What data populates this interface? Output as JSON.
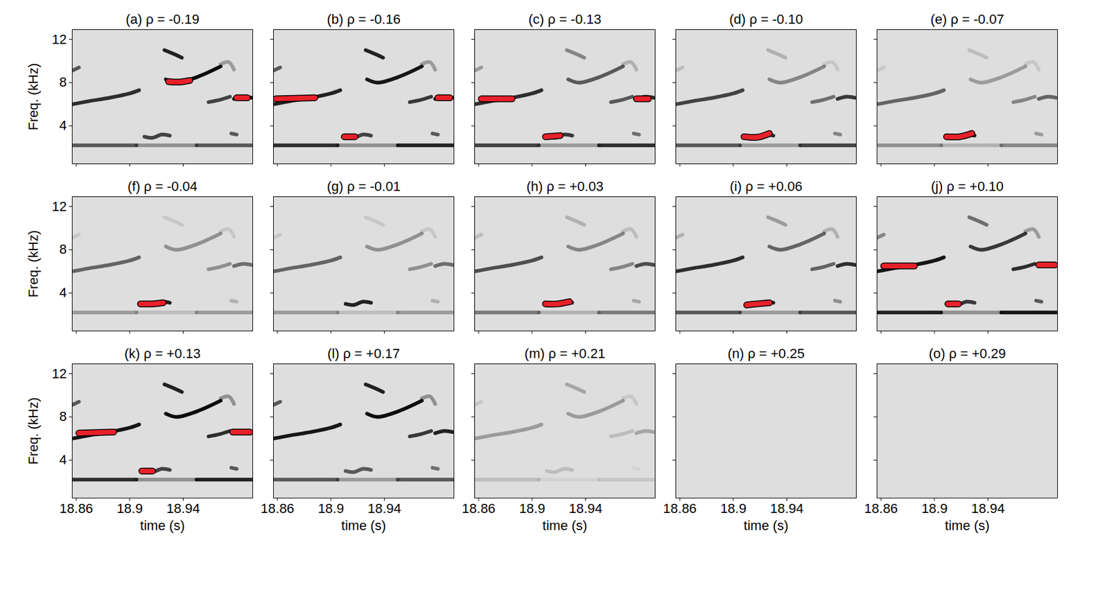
{
  "chart_data": {
    "type": "spectrogram",
    "x_label": "time (s)",
    "y_label": "Freq. (kHz)",
    "xlim": [
      18.857,
      18.992
    ],
    "ylim": [
      0.5,
      12.9
    ],
    "xticks": [
      18.86,
      18.9,
      18.94
    ],
    "yticks": [
      4,
      8,
      12
    ],
    "color": "#e8202a",
    "features": [
      {
        "time": [
          18.857,
          18.87,
          18.885,
          18.9,
          18.907
        ],
        "freq": [
          6.0,
          6.3,
          6.6,
          7.0,
          7.3
        ]
      },
      {
        "time": [
          18.857,
          18.862
        ],
        "freq": [
          9.1,
          9.4
        ]
      },
      {
        "time": [
          18.926,
          18.932,
          18.939
        ],
        "freq": [
          11.0,
          10.7,
          10.3
        ]
      },
      {
        "time": [
          18.927,
          18.935,
          18.95,
          18.968
        ],
        "freq": [
          8.3,
          8.0,
          8.5,
          9.5
        ]
      },
      {
        "time": [
          18.968,
          18.974,
          18.978
        ],
        "freq": [
          9.7,
          9.9,
          9.2
        ]
      },
      {
        "time": [
          18.959,
          18.967,
          18.975
        ],
        "freq": [
          6.2,
          6.4,
          6.7
        ]
      },
      {
        "time": [
          18.978,
          18.985,
          18.991
        ],
        "freq": [
          6.5,
          6.7,
          6.6
        ]
      },
      {
        "time": [
          18.911,
          18.917,
          18.924,
          18.93
        ],
        "freq": [
          3.0,
          2.9,
          3.2,
          3.1
        ]
      },
      {
        "time": [
          18.857,
          18.905
        ],
        "freq": [
          2.2,
          2.2
        ]
      },
      {
        "time": [
          18.905,
          18.95
        ],
        "freq": [
          2.2,
          2.2
        ]
      },
      {
        "time": [
          18.95,
          18.992
        ],
        "freq": [
          2.2,
          2.2
        ]
      },
      {
        "time": [
          18.976,
          18.98
        ],
        "freq": [
          3.3,
          3.2
        ]
      }
    ],
    "panels": [
      {
        "title": "(a) ρ = -0.19",
        "intensity": [
          0.8,
          0.6,
          0.85,
          0.95,
          0.3,
          0.7,
          0.9,
          0.7,
          0.6,
          0.35,
          0.6,
          0.6
        ],
        "highlights": [
          {
            "time": [
              18.929,
              18.937,
              18.945
            ],
            "freq": [
              8.1,
              8.05,
              8.2
            ]
          },
          {
            "time": [
              18.98,
              18.988
            ],
            "freq": [
              6.6,
              6.6
            ]
          }
        ]
      },
      {
        "title": "(b) ρ = -0.16",
        "intensity": [
          0.85,
          0.6,
          0.85,
          0.9,
          0.3,
          0.75,
          0.9,
          0.7,
          0.8,
          0.35,
          0.85,
          0.6
        ],
        "highlights": [
          {
            "time": [
              18.859,
              18.888
            ],
            "freq": [
              6.5,
              6.6
            ]
          },
          {
            "time": [
              18.91,
              18.918
            ],
            "freq": [
              3.0,
              3.0
            ]
          },
          {
            "time": [
              18.98,
              18.989
            ],
            "freq": [
              6.6,
              6.6
            ]
          }
        ]
      },
      {
        "title": "(c) ρ = -0.13",
        "intensity": [
          0.8,
          0.3,
          0.4,
          0.6,
          0.2,
          0.6,
          0.8,
          0.75,
          0.7,
          0.3,
          0.8,
          0.5
        ],
        "highlights": [
          {
            "time": [
              18.862,
              18.885
            ],
            "freq": [
              6.5,
              6.5
            ]
          },
          {
            "time": [
              18.91,
              18.921
            ],
            "freq": [
              3.0,
              3.1
            ]
          },
          {
            "time": [
              18.978,
              18.987
            ],
            "freq": [
              6.5,
              6.5
            ]
          }
        ]
      },
      {
        "title": "(d) ρ = -0.10",
        "intensity": [
          0.7,
          0.15,
          0.2,
          0.4,
          0.1,
          0.5,
          0.75,
          0.8,
          0.6,
          0.3,
          0.7,
          0.4
        ],
        "highlights": [
          {
            "time": [
              18.908,
              18.918,
              18.927
            ],
            "freq": [
              3.0,
              2.95,
              3.3
            ]
          }
        ]
      },
      {
        "title": "(e) ρ = -0.07",
        "intensity": [
          0.55,
          0.1,
          0.15,
          0.3,
          0.1,
          0.4,
          0.55,
          0.85,
          0.35,
          0.2,
          0.4,
          0.3
        ],
        "highlights": [
          {
            "time": [
              18.909,
              18.919,
              18.928
            ],
            "freq": [
              3.0,
              3.0,
              3.3
            ]
          }
        ]
      },
      {
        "title": "(f) ρ = -0.04",
        "intensity": [
          0.55,
          0.1,
          0.1,
          0.35,
          0.1,
          0.35,
          0.5,
          0.85,
          0.3,
          0.15,
          0.3,
          0.2
        ],
        "highlights": [
          {
            "time": [
              18.908,
              18.917,
              18.925
            ],
            "freq": [
              3.0,
              3.0,
              3.1
            ]
          }
        ]
      },
      {
        "title": "(g) ρ = -0.01",
        "intensity": [
          0.55,
          0.1,
          0.1,
          0.35,
          0.1,
          0.35,
          0.5,
          0.85,
          0.3,
          0.15,
          0.3,
          0.2
        ],
        "highlights": []
      },
      {
        "title": "(h) ρ = +0.03",
        "intensity": [
          0.65,
          0.15,
          0.2,
          0.4,
          0.15,
          0.4,
          0.65,
          0.85,
          0.45,
          0.2,
          0.45,
          0.25
        ],
        "highlights": [
          {
            "time": [
              18.91,
              18.919,
              18.928
            ],
            "freq": [
              3.0,
              3.0,
              3.2
            ]
          }
        ]
      },
      {
        "title": "(i) ρ = +0.06",
        "intensity": [
          0.8,
          0.2,
          0.3,
          0.55,
          0.2,
          0.55,
          0.8,
          0.85,
          0.6,
          0.3,
          0.6,
          0.35
        ],
        "highlights": [
          {
            "time": [
              18.91,
              18.918,
              18.927
            ],
            "freq": [
              2.9,
              3.0,
              3.1
            ]
          }
        ]
      },
      {
        "title": "(j) ρ = +0.10",
        "intensity": [
          0.9,
          0.4,
          0.5,
          0.75,
          0.3,
          0.8,
          0.9,
          0.75,
          0.85,
          0.35,
          0.9,
          0.6
        ],
        "highlights": [
          {
            "time": [
              18.862,
              18.885
            ],
            "freq": [
              6.5,
              6.5
            ]
          },
          {
            "time": [
              18.91,
              18.918
            ],
            "freq": [
              3.0,
              3.0
            ]
          },
          {
            "time": [
              18.978,
              18.99
            ],
            "freq": [
              6.6,
              6.6
            ]
          }
        ]
      },
      {
        "title": "(k) ρ = +0.13",
        "intensity": [
          0.9,
          0.6,
          0.85,
          0.95,
          0.35,
          0.8,
          0.9,
          0.7,
          0.8,
          0.35,
          0.85,
          0.6
        ],
        "highlights": [
          {
            "time": [
              18.862,
              18.888
            ],
            "freq": [
              6.5,
              6.6
            ]
          },
          {
            "time": [
              18.909,
              18.917
            ],
            "freq": [
              3.0,
              3.0
            ]
          },
          {
            "time": [
              18.977,
              18.99
            ],
            "freq": [
              6.6,
              6.6
            ]
          }
        ]
      },
      {
        "title": "(l) ρ = +0.17",
        "intensity": [
          0.9,
          0.6,
          0.85,
          0.95,
          0.35,
          0.75,
          0.85,
          0.6,
          0.6,
          0.3,
          0.6,
          0.5
        ],
        "highlights": []
      },
      {
        "title": "(m) ρ = +0.21",
        "intensity": [
          0.3,
          0.1,
          0.25,
          0.3,
          0.1,
          0.15,
          0.25,
          0.15,
          0.15,
          0.05,
          0.1,
          0.05
        ],
        "highlights": []
      },
      {
        "title": "(n) ρ = +0.25",
        "intensity": [
          0,
          0,
          0,
          0,
          0,
          0,
          0,
          0,
          0,
          0,
          0,
          0
        ],
        "highlights": []
      },
      {
        "title": "(o) ρ = +0.29",
        "intensity": [
          0,
          0,
          0,
          0,
          0,
          0,
          0,
          0,
          0,
          0,
          0,
          0
        ],
        "highlights": []
      }
    ]
  }
}
